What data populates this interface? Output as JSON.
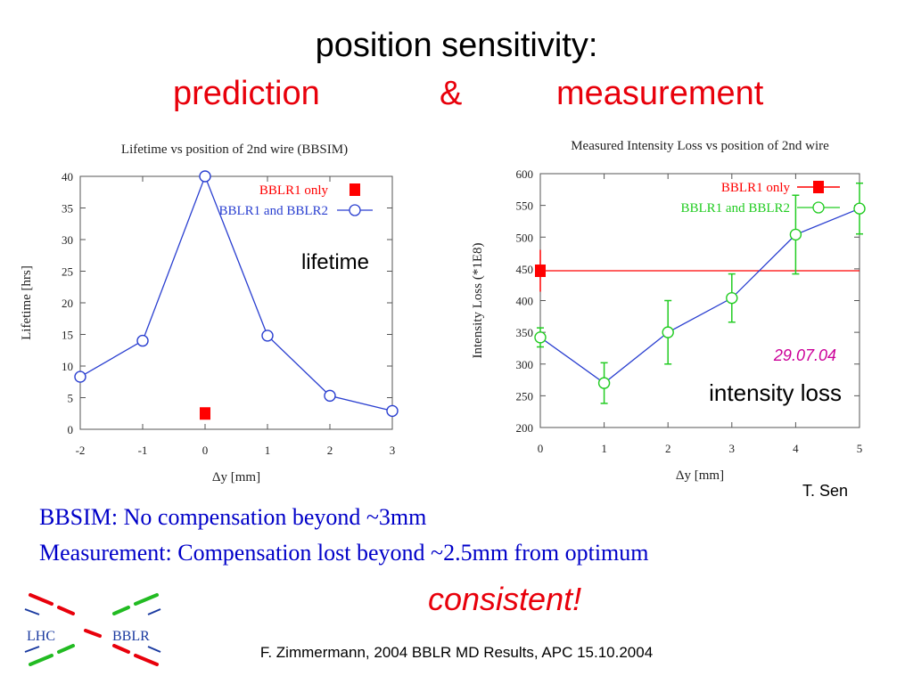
{
  "slide": {
    "title_line1": "position sensitivity:",
    "title_prediction": "prediction",
    "title_amp": "&",
    "title_measurement": "measurement",
    "summary_line1": "BBSIM: No compensation beyond ~3mm",
    "summary_line2": "Measurement: Compensation lost beyond ~2.5mm from optimum",
    "conclusion": "consistent!",
    "footer": "F. Zimmermann, 2004 BBLR MD Results, APC 15.10.2004",
    "author": "T. Sen",
    "logo": {
      "left_text": "LHC",
      "right_text": "BBLR",
      "colors": [
        "#e8000b",
        "#22bb22",
        "#1a3aa0"
      ]
    }
  },
  "colors": {
    "title_red": "#e8000b",
    "summary_blue": "#0000c8",
    "series_blue": "#2a3fd0",
    "series_green": "#22cc22",
    "marker_red": "#ff0000",
    "annotation_magenta": "#cc0099"
  },
  "chart_data": [
    {
      "type": "line",
      "title": "Lifetime vs position of 2nd wire (BBSIM)",
      "xlabel": "Δy [mm]",
      "ylabel": "Lifetime [hrs]",
      "xlim": [
        -2,
        3
      ],
      "ylim": [
        0,
        40
      ],
      "xticks": [
        -2,
        -1,
        0,
        1,
        2,
        3
      ],
      "yticks": [
        0,
        5,
        10,
        15,
        20,
        25,
        30,
        35,
        40
      ],
      "grid": false,
      "legend_position": "top-right",
      "annotation": "lifetime",
      "series": [
        {
          "name": "BBLR1 only",
          "marker": "filled-square",
          "x": [
            0
          ],
          "y": [
            2.5
          ]
        },
        {
          "name": "BBLR1 and BBLR2",
          "marker": "open-circle",
          "x": [
            -2,
            -1,
            0,
            1,
            2,
            3
          ],
          "y": [
            8.3,
            14,
            40,
            14.8,
            5.3,
            2.9
          ]
        }
      ]
    },
    {
      "type": "line",
      "title": "Measured Intensity Loss vs position of 2nd wire",
      "xlabel": "Δy [mm]",
      "ylabel": "Intensity Loss (*1E8)",
      "xlim": [
        0,
        5
      ],
      "ylim": [
        200,
        600
      ],
      "xticks": [
        0,
        1,
        2,
        3,
        4,
        5
      ],
      "yticks": [
        200,
        250,
        300,
        350,
        400,
        450,
        500,
        550,
        600
      ],
      "grid": false,
      "legend_position": "top-right",
      "date_label": "29.07.04",
      "annotation": "intensity loss",
      "series": [
        {
          "name": "BBLR1 only",
          "marker": "filled-square",
          "x": [
            0
          ],
          "y": [
            447
          ],
          "yerr": [
            33
          ],
          "reference_line": true
        },
        {
          "name": "BBLR1 and BBLR2",
          "marker": "open-circle",
          "x": [
            0,
            1,
            2,
            3,
            4,
            5
          ],
          "y": [
            342,
            270,
            350,
            404,
            504,
            545
          ],
          "yerr": [
            15,
            32,
            50,
            38,
            62,
            40
          ]
        }
      ]
    }
  ]
}
